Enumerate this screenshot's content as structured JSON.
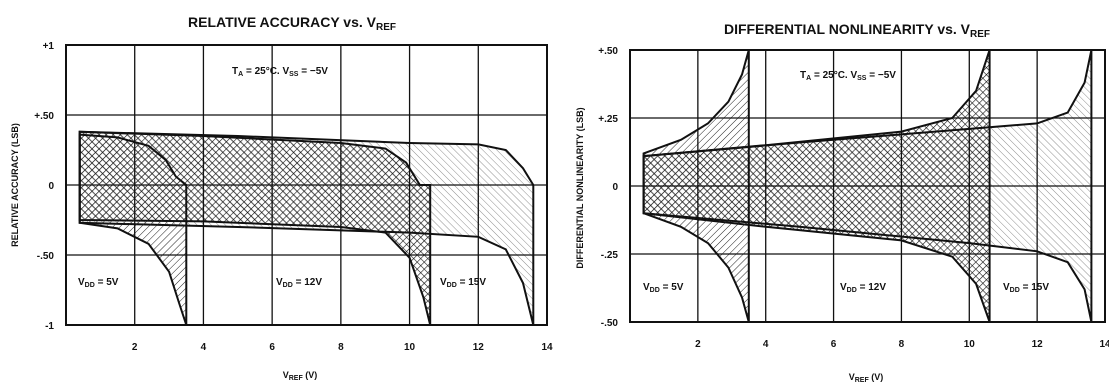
{
  "chart_data": [
    {
      "type": "area",
      "title": "RELATIVE ACCURACY vs. V",
      "title_subscript": "REF",
      "xlabel": "V",
      "xlabel_subscript": "REF",
      "xlabel_unit": " (V)",
      "ylabel": "RELATIVE ACCURACY (LSB)",
      "xlim": [
        0,
        14
      ],
      "ylim": [
        -1,
        1
      ],
      "x_ticks": [
        2,
        4,
        6,
        8,
        10,
        12,
        14
      ],
      "y_ticks": [
        {
          "value": 1,
          "label": "+1"
        },
        {
          "value": 0.5,
          "label": "+.50"
        },
        {
          "value": 0,
          "label": "0"
        },
        {
          "value": -0.5,
          "label": "-.50"
        },
        {
          "value": -1,
          "label": "-1"
        }
      ],
      "grid": true,
      "conditions": {
        "prefix": "T",
        "prefix_sub": "A",
        "mid": " = 25°C. V",
        "mid_sub": "SS",
        "suffix": " = −5V"
      },
      "series": [
        {
          "name": "V_DD = 5V",
          "label_main": "V",
          "label_sub": "DD",
          "label_value": " = 5V",
          "hatch": "diag-left",
          "upper": [
            [
              0.4,
              0.36
            ],
            [
              1.5,
              0.34
            ],
            [
              2.4,
              0.28
            ],
            [
              2.9,
              0.18
            ],
            [
              3.2,
              0.06
            ],
            [
              3.5,
              0.0
            ]
          ],
          "lower": [
            [
              0.4,
              -0.27
            ],
            [
              1.5,
              -0.31
            ],
            [
              2.4,
              -0.42
            ],
            [
              3.0,
              -0.62
            ],
            [
              3.3,
              -0.85
            ],
            [
              3.5,
              -1.0
            ]
          ]
        },
        {
          "name": "V_DD = 12V",
          "label_main": "V",
          "label_sub": "DD",
          "label_value": " = 12V",
          "hatch": "cross",
          "upper": [
            [
              0.4,
              0.38
            ],
            [
              4,
              0.35
            ],
            [
              8,
              0.3
            ],
            [
              9.3,
              0.26
            ],
            [
              9.9,
              0.16
            ],
            [
              10.3,
              0.0
            ],
            [
              10.6,
              0.0
            ]
          ],
          "lower": [
            [
              0.4,
              -0.25
            ],
            [
              4,
              -0.26
            ],
            [
              8,
              -0.3
            ],
            [
              9.3,
              -0.34
            ],
            [
              10.0,
              -0.52
            ],
            [
              10.4,
              -0.8
            ],
            [
              10.6,
              -1.0
            ]
          ]
        },
        {
          "name": "V_DD = 15V",
          "label_main": "V",
          "label_sub": "DD",
          "label_value": " = 15V",
          "hatch": "diag-right",
          "upper": [
            [
              0.4,
              0.38
            ],
            [
              5,
              0.35
            ],
            [
              10,
              0.3
            ],
            [
              12,
              0.29
            ],
            [
              12.8,
              0.25
            ],
            [
              13.3,
              0.12
            ],
            [
              13.6,
              0.0
            ]
          ],
          "lower": [
            [
              0.4,
              -0.27
            ],
            [
              5,
              -0.3
            ],
            [
              10,
              -0.34
            ],
            [
              12,
              -0.37
            ],
            [
              12.8,
              -0.46
            ],
            [
              13.3,
              -0.7
            ],
            [
              13.6,
              -1.0
            ]
          ]
        }
      ]
    },
    {
      "type": "area",
      "title": "DIFFERENTIAL NONLINEARITY vs. V",
      "title_subscript": "REF",
      "xlabel": "V",
      "xlabel_subscript": "REF",
      "xlabel_unit": " (V)",
      "ylabel": "DIFFERENTIAL NONLINEARITY (LSB)",
      "xlim": [
        0,
        14
      ],
      "ylim": [
        -0.5,
        0.5
      ],
      "x_ticks": [
        2,
        4,
        6,
        8,
        10,
        12,
        14
      ],
      "y_ticks": [
        {
          "value": 0.5,
          "label": "+.50"
        },
        {
          "value": 0.25,
          "label": "+.25"
        },
        {
          "value": 0,
          "label": "0"
        },
        {
          "value": -0.25,
          "label": "-.25"
        },
        {
          "value": -0.5,
          "label": "-.50"
        }
      ],
      "grid": true,
      "conditions": {
        "prefix": "T",
        "prefix_sub": "A",
        "mid": " = 25°C. V",
        "mid_sub": "SS",
        "suffix": " = −5V"
      },
      "series": [
        {
          "name": "V_DD = 5V",
          "label_main": "V",
          "label_sub": "DD",
          "label_value": " = 5V",
          "hatch": "diag-left",
          "upper": [
            [
              0.4,
              0.12
            ],
            [
              1.5,
              0.17
            ],
            [
              2.3,
              0.23
            ],
            [
              2.9,
              0.31
            ],
            [
              3.3,
              0.41
            ],
            [
              3.5,
              0.5
            ]
          ],
          "lower": [
            [
              0.4,
              -0.1
            ],
            [
              1.5,
              -0.15
            ],
            [
              2.3,
              -0.21
            ],
            [
              2.9,
              -0.3
            ],
            [
              3.3,
              -0.41
            ],
            [
              3.5,
              -0.5
            ]
          ]
        },
        {
          "name": "V_DD = 12V",
          "label_main": "V",
          "label_sub": "DD",
          "label_value": " = 12V",
          "hatch": "cross",
          "upper": [
            [
              0.4,
              0.11
            ],
            [
              4,
              0.15
            ],
            [
              8,
              0.2
            ],
            [
              9.5,
              0.25
            ],
            [
              10.2,
              0.35
            ],
            [
              10.6,
              0.5
            ]
          ],
          "lower": [
            [
              0.4,
              -0.1
            ],
            [
              4,
              -0.15
            ],
            [
              8,
              -0.2
            ],
            [
              9.5,
              -0.26
            ],
            [
              10.2,
              -0.36
            ],
            [
              10.6,
              -0.5
            ]
          ]
        },
        {
          "name": "V_DD = 15V",
          "label_main": "V",
          "label_sub": "DD",
          "label_value": " = 15V",
          "hatch": "diag-right",
          "upper": [
            [
              0.4,
              0.11
            ],
            [
              5,
              0.16
            ],
            [
              10,
              0.21
            ],
            [
              12,
              0.23
            ],
            [
              12.9,
              0.27
            ],
            [
              13.4,
              0.38
            ],
            [
              13.6,
              0.5
            ]
          ],
          "lower": [
            [
              0.4,
              -0.1
            ],
            [
              5,
              -0.15
            ],
            [
              10,
              -0.21
            ],
            [
              12,
              -0.24
            ],
            [
              12.9,
              -0.28
            ],
            [
              13.4,
              -0.38
            ],
            [
              13.6,
              -0.5
            ]
          ]
        }
      ]
    }
  ]
}
